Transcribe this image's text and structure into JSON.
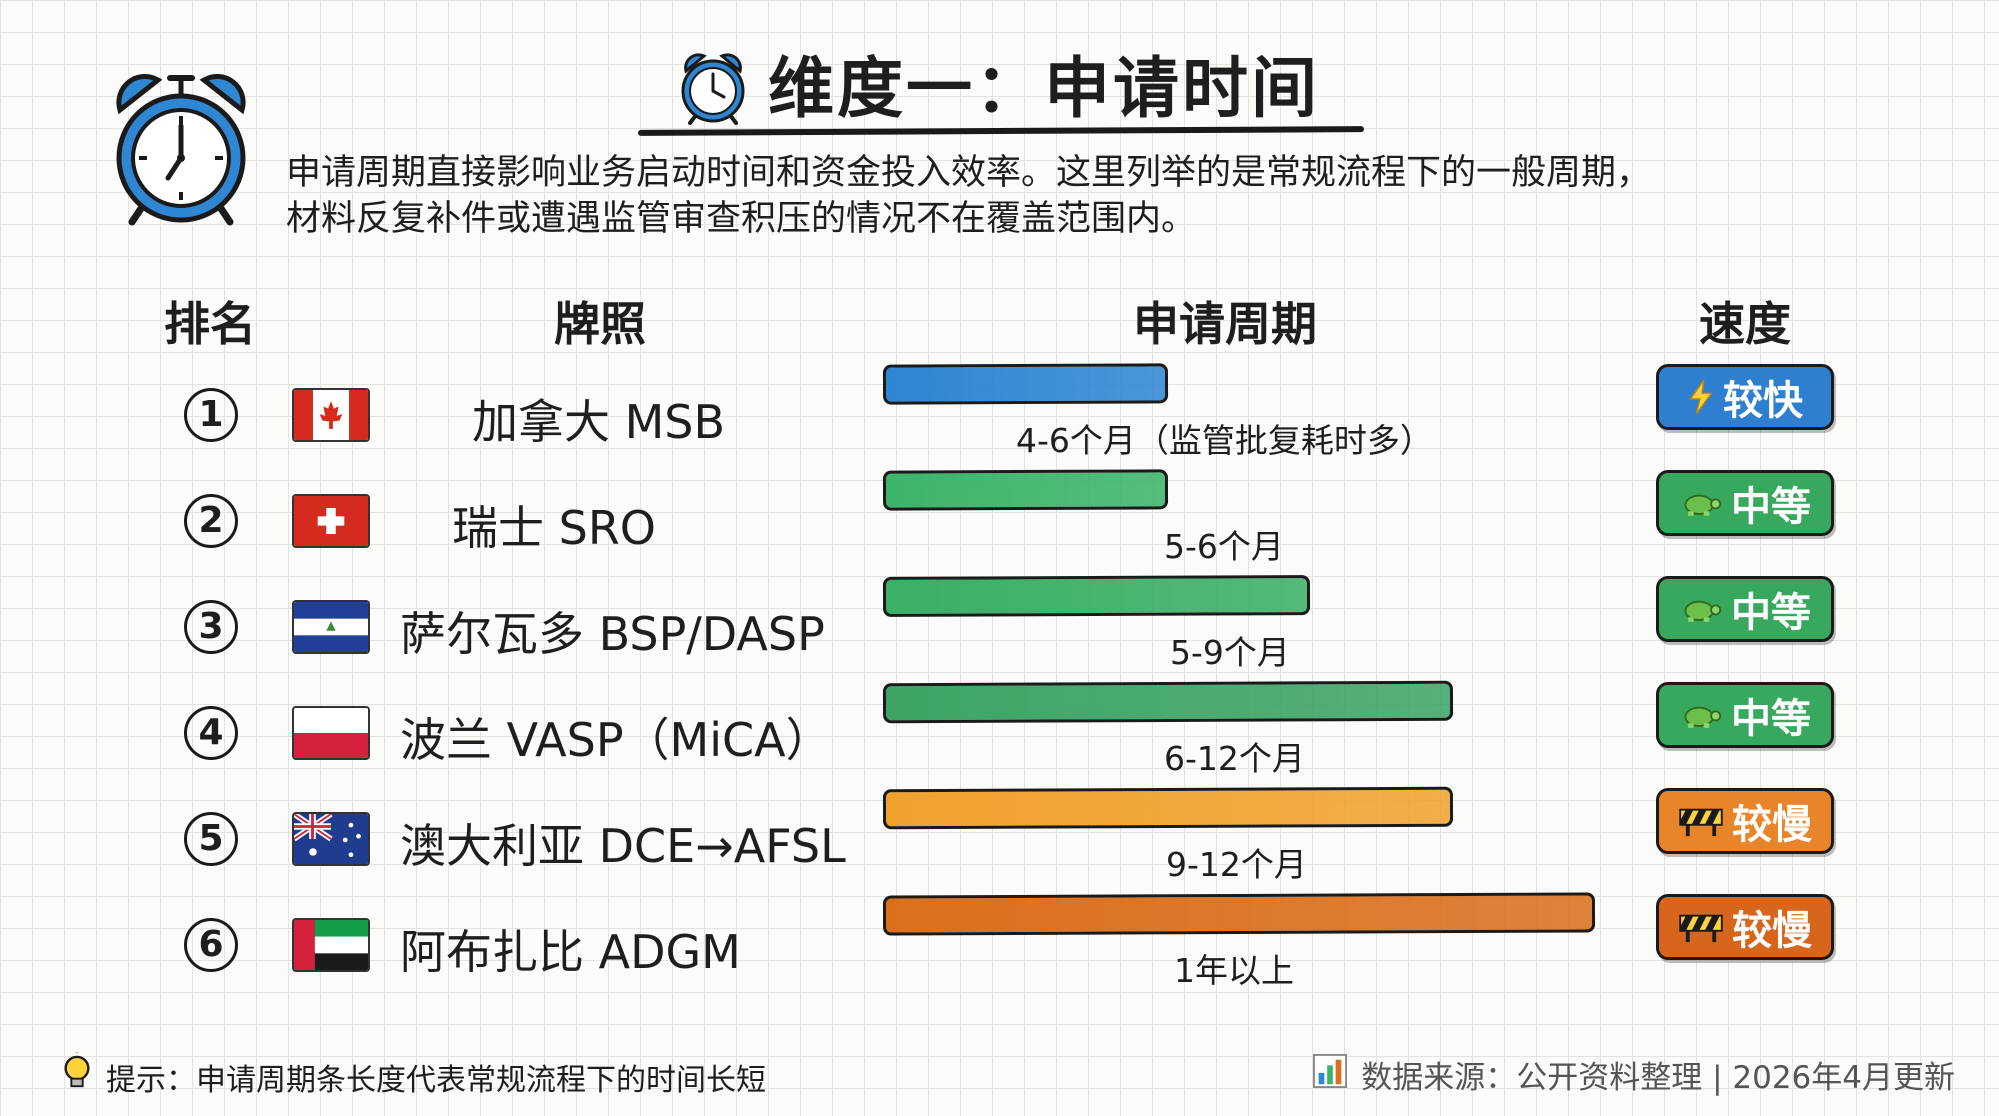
{
  "title": "维度一：申请时间",
  "intro": {
    "line1": "申请周期直接影响业务启动时间和资金投入效率。这里列举的是常规流程下的一般周期，",
    "line2": "材料反复补件或遭遇监管审查积压的情况不在覆盖范围内。"
  },
  "headers": {
    "rank": "排名",
    "license": "牌照",
    "period": "申请周期",
    "speed": "速度"
  },
  "rows": [
    {
      "rank": "1",
      "flag": "canada-flag-icon",
      "license": "加拿大 MSB",
      "period": "4-6个月（监管批复耗时多）",
      "duration_months_max": 6,
      "bar_color": "#2f86d2",
      "speed": "较快",
      "speed_icon": "lightning-icon",
      "badge_color": "#2f7fd0"
    },
    {
      "rank": "2",
      "flag": "switzerland-flag-icon",
      "license": "瑞士 SRO",
      "period": "5-6个月",
      "duration_months_max": 6,
      "bar_color": "#3cb46a",
      "speed": "中等",
      "speed_icon": "turtle-icon",
      "badge_color": "#37a85e"
    },
    {
      "rank": "3",
      "flag": "el-salvador-flag-icon",
      "license": "萨尔瓦多 BSP/DASP",
      "period": "5-9个月",
      "duration_months_max": 9,
      "bar_color": "#3aaf66",
      "speed": "中等",
      "speed_icon": "turtle-icon",
      "badge_color": "#37a85e"
    },
    {
      "rank": "4",
      "flag": "poland-flag-icon",
      "license": "波兰 VASP（MiCA）",
      "period": "6-12个月",
      "duration_months_max": 12,
      "bar_color": "#3da466",
      "speed": "中等",
      "speed_icon": "turtle-icon",
      "badge_color": "#37a85e"
    },
    {
      "rank": "5",
      "flag": "australia-flag-icon",
      "license": "澳大利亚 DCE→AFSL",
      "period": "9-12个月",
      "duration_months_max": 12,
      "bar_color": "#f0a22e",
      "speed": "较慢",
      "speed_icon": "roadblock-icon",
      "badge_color": "#e8842a"
    },
    {
      "rank": "6",
      "flag": "uae-flag-icon",
      "license": "阿布扎比 ADGM",
      "period": "1年以上",
      "duration_months_max": 15,
      "bar_color": "#db6f1c",
      "speed": "较慢",
      "speed_icon": "roadblock-icon",
      "badge_color": "#d8651c"
    }
  ],
  "footer": {
    "tip": "提示：申请周期条长度代表常规流程下的时间长短",
    "source": "数据来源：公开资料整理 | 2026年4月更新"
  },
  "icons": {
    "title": "alarm-clock-icon",
    "big": "alarm-clock-icon",
    "tip": "lightbulb-icon",
    "source": "bar-chart-icon"
  }
}
